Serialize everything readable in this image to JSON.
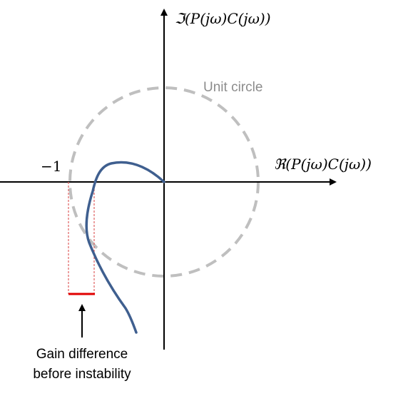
{
  "diagram": {
    "imag_axis_label": "ℑ(P(jω)C(jω))",
    "real_axis_label": "ℜ(P(jω)C(jω))",
    "minus_one_label": "−1",
    "unit_circle_label": "Unit circle",
    "annotation_line1": "Gain difference",
    "annotation_line2": "before instability"
  },
  "colors": {
    "axis": "#000000",
    "unit_circle": "#bfbfbf",
    "unit_circle_label": "#8c8c8c",
    "nyquist_curve": "#3f5f8f",
    "gain_margin_box": "#e06060",
    "gain_margin_bar": "#e00000",
    "text": "#000000"
  }
}
